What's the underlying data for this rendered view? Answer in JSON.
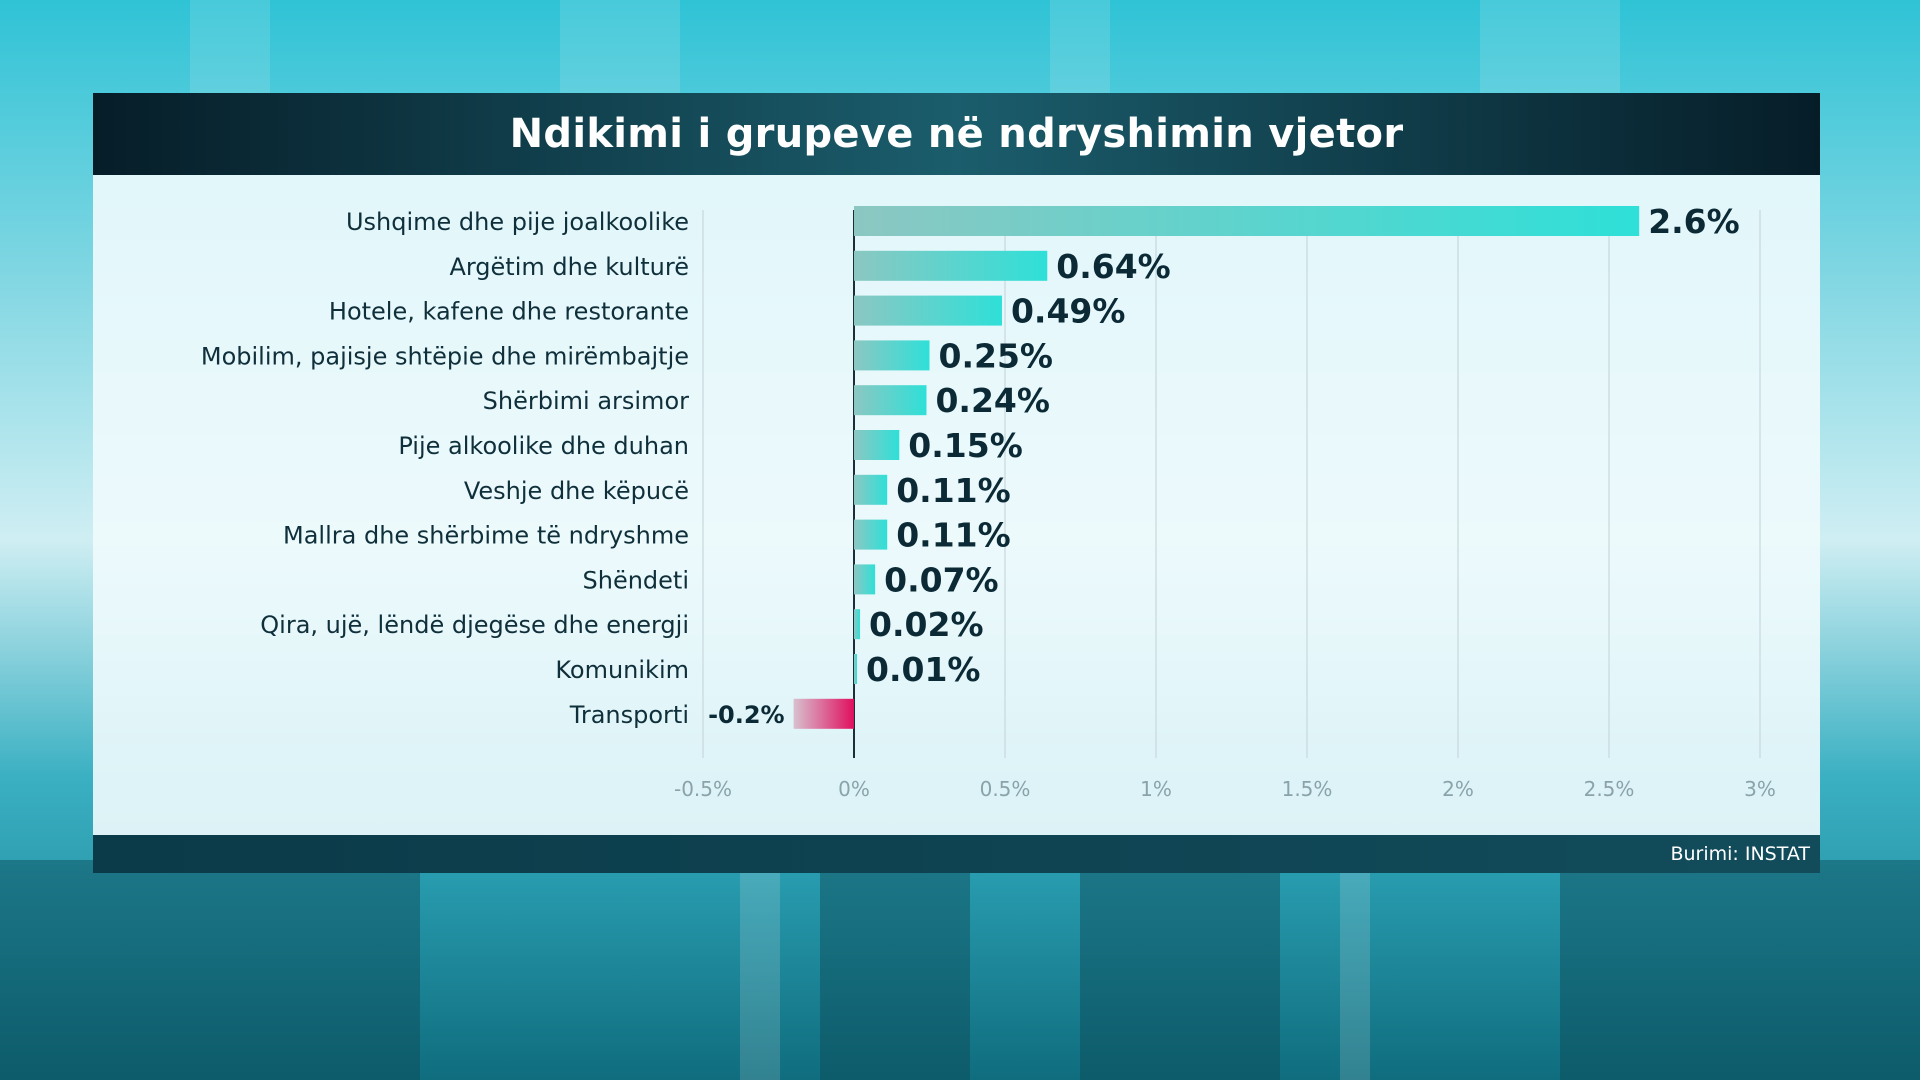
{
  "title": "Ndikimi i grupeve në ndryshimin vjetor",
  "source": "Burimi: INSTAT",
  "colors": {
    "positive_start": "#8cc7c2",
    "positive_end": "#2ee0d8",
    "negative_start": "#d8c0cf",
    "negative_end": "#e0105f",
    "grid": "#c8d8dc"
  },
  "chart_data": {
    "type": "bar",
    "orientation": "horizontal",
    "categories": [
      "Ushqime dhe pije joalkoolike",
      "Argëtim dhe kulturë",
      "Hotele, kafene dhe restorante",
      "Mobilim, pajisje shtëpie dhe mirëmbajtje",
      "Shërbimi arsimor",
      "Pije alkoolike dhe duhan",
      "Veshje dhe këpucë",
      "Mallra dhe shërbime të ndryshme",
      "Shëndeti",
      "Qira, ujë, lëndë djegëse dhe energji",
      "Komunikim",
      "Transporti"
    ],
    "values": [
      2.6,
      0.64,
      0.49,
      0.25,
      0.24,
      0.15,
      0.11,
      0.11,
      0.07,
      0.02,
      0.01,
      -0.2
    ],
    "value_labels": [
      "2.6%",
      "0.64%",
      "0.49%",
      "0.25%",
      "0.24%",
      "0.15%",
      "0.11%",
      "0.11%",
      "0.07%",
      "0.02%",
      "0.01%",
      "-0.2%"
    ],
    "xlim": [
      -0.5,
      3
    ],
    "xticks": [
      -0.5,
      0,
      0.5,
      1,
      1.5,
      2,
      2.5,
      3
    ],
    "xtick_labels": [
      "-0.5%",
      "0%",
      "0.5%",
      "1%",
      "1.5%",
      "2%",
      "2.5%",
      "3%"
    ],
    "grid": true
  }
}
